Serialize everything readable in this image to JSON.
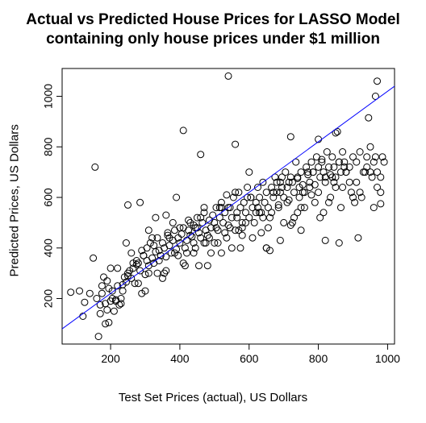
{
  "chart_data": {
    "type": "scatter",
    "title": "Actual vs Predicted House Prices for LASSO Model",
    "subtitle": "containing only house prices under $1 million",
    "xlabel": "Test Set Prices (actual), US Dollars",
    "ylabel": "Predicted Prices, US Dollars",
    "xlim": [
      60,
      1020
    ],
    "ylim": [
      20,
      1110
    ],
    "xticks": [
      200,
      400,
      600,
      800,
      1000
    ],
    "yticks": [
      200,
      400,
      600,
      800,
      1000
    ],
    "fit_line": {
      "color": "#0000ff",
      "intercept": 20,
      "slope": 1
    },
    "point_style": "open-circle",
    "grid": false,
    "legend": "none",
    "x": [
      85,
      110,
      120,
      125,
      140,
      150,
      160,
      165,
      170,
      175,
      180,
      185,
      190,
      195,
      200,
      205,
      210,
      215,
      220,
      225,
      230,
      235,
      240,
      245,
      250,
      255,
      260,
      265,
      270,
      275,
      280,
      285,
      290,
      295,
      300,
      305,
      310,
      315,
      320,
      325,
      330,
      335,
      340,
      345,
      350,
      355,
      360,
      365,
      370,
      375,
      380,
      385,
      390,
      395,
      400,
      405,
      410,
      415,
      420,
      425,
      430,
      435,
      440,
      445,
      450,
      455,
      460,
      465,
      470,
      475,
      480,
      485,
      490,
      495,
      500,
      505,
      510,
      515,
      520,
      525,
      530,
      535,
      540,
      545,
      550,
      555,
      560,
      565,
      570,
      575,
      580,
      585,
      590,
      595,
      600,
      605,
      610,
      615,
      620,
      625,
      630,
      635,
      640,
      645,
      650,
      655,
      660,
      665,
      670,
      675,
      680,
      685,
      690,
      695,
      700,
      705,
      710,
      715,
      720,
      725,
      730,
      735,
      740,
      745,
      750,
      755,
      760,
      765,
      770,
      775,
      780,
      785,
      790,
      795,
      800,
      805,
      810,
      815,
      820,
      825,
      830,
      835,
      840,
      845,
      850,
      855,
      860,
      865,
      870,
      875,
      880,
      890,
      900,
      910,
      920,
      930,
      940,
      950,
      960,
      970,
      980,
      990,
      175,
      190,
      205,
      220,
      235,
      250,
      265,
      280,
      295,
      310,
      325,
      340,
      355,
      370,
      385,
      400,
      415,
      430,
      445,
      460,
      475,
      490,
      505,
      520,
      535,
      550,
      565,
      580,
      595,
      610,
      625,
      640,
      655,
      670,
      685,
      700,
      715,
      730,
      745,
      760,
      775,
      790,
      805,
      820,
      835,
      850,
      865,
      880,
      895,
      910,
      925,
      940,
      955,
      970,
      985,
      200,
      230,
      260,
      290,
      320,
      350,
      380,
      410,
      440,
      470,
      500,
      530,
      560,
      590,
      620,
      650,
      680,
      710,
      740,
      770,
      800,
      830,
      860,
      890,
      920,
      950,
      980,
      215,
      245,
      275,
      305,
      335,
      365,
      395,
      425,
      455,
      485,
      515,
      545,
      575,
      605,
      635,
      665,
      695,
      725,
      755,
      785,
      815,
      845,
      875,
      905,
      935,
      965,
      300,
      330,
      360,
      390,
      420,
      450,
      480,
      510,
      540,
      570,
      600,
      630,
      660,
      690,
      720,
      750,
      780,
      810,
      840,
      870,
      900,
      540,
      410,
      460,
      560,
      250,
      740,
      720,
      800,
      850,
      970,
      980,
      965,
      945,
      155,
      185,
      195,
      170,
      285,
      310,
      360,
      440,
      470,
      520,
      580,
      650,
      690,
      750,
      820,
      860,
      915,
      960
    ],
    "y": [
      225,
      230,
      130,
      185,
      220,
      360,
      200,
      50,
      175,
      220,
      285,
      180,
      155,
      240,
      190,
      230,
      150,
      195,
      250,
      175,
      200,
      255,
      285,
      265,
      300,
      310,
      280,
      320,
      260,
      335,
      340,
      310,
      390,
      370,
      295,
      350,
      330,
      420,
      360,
      340,
      385,
      440,
      390,
      370,
      420,
      400,
      365,
      450,
      410,
      380,
      430,
      470,
      395,
      440,
      420,
      455,
      480,
      400,
      430,
      470,
      500,
      445,
      420,
      480,
      520,
      460,
      440,
      500,
      540,
      470,
      450,
      510,
      480,
      530,
      500,
      560,
      470,
      520,
      580,
      500,
      540,
      610,
      490,
      560,
      520,
      600,
      470,
      540,
      620,
      560,
      500,
      580,
      540,
      640,
      520,
      600,
      560,
      500,
      580,
      640,
      600,
      540,
      660,
      580,
      620,
      560,
      520,
      640,
      600,
      680,
      620,
      570,
      660,
      640,
      600,
      700,
      640,
      590,
      680,
      660,
      620,
      740,
      680,
      640,
      700,
      650,
      620,
      720,
      690,
      660,
      740,
      700,
      650,
      760,
      720,
      680,
      740,
      700,
      660,
      780,
      720,
      690,
      760,
      720,
      680,
      860,
      740,
      700,
      780,
      740,
      700,
      720,
      760,
      740,
      780,
      700,
      760,
      800,
      740,
      700,
      620,
      740,
      250,
      270,
      200,
      320,
      230,
      290,
      340,
      260,
      370,
      300,
      410,
      350,
      300,
      440,
      380,
      480,
      330,
      450,
      400,
      520,
      420,
      380,
      480,
      560,
      440,
      400,
      520,
      480,
      600,
      440,
      560,
      520,
      480,
      620,
      560,
      500,
      660,
      520,
      600,
      560,
      640,
      580,
      520,
      680,
      600,
      640,
      560,
      700,
      620,
      660,
      600,
      720,
      680,
      640,
      760,
      320,
      180,
      380,
      220,
      440,
      280,
      500,
      340,
      380,
      560,
      420,
      460,
      620,
      500,
      540,
      400,
      660,
      580,
      540,
      700,
      620,
      580,
      740,
      660,
      620,
      700,
      680,
      190,
      420,
      350,
      400,
      300,
      460,
      370,
      510,
      330,
      440,
      560,
      480,
      400,
      600,
      460,
      540,
      680,
      500,
      620,
      700,
      540,
      660,
      720,
      580,
      700,
      760,
      230,
      520,
      310,
      600,
      380,
      480,
      330,
      420,
      560,
      470,
      700,
      540,
      390,
      620,
      490,
      560,
      610,
      750,
      680,
      640,
      600,
      1080,
      865,
      770,
      810,
      570,
      675,
      840,
      830,
      855,
      1060,
      575,
      1000,
      915,
      720,
      100,
      105,
      140,
      580,
      470,
      530,
      490,
      420,
      380,
      450,
      400,
      430,
      470,
      430,
      420,
      440,
      560
    ],
    "x2": [],
    "y2": []
  }
}
